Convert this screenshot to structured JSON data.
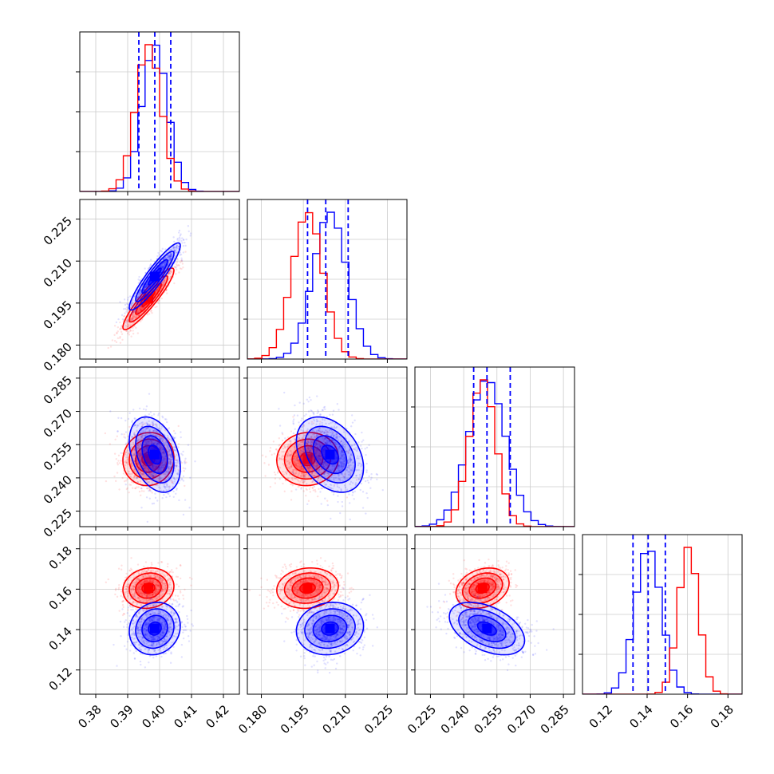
{
  "chart_data": {
    "type": "corner",
    "title": "",
    "parameters": [
      "",
      "",
      "",
      ""
    ],
    "grid": true,
    "colors": {
      "series_a": "#0000ff",
      "series_b": "#ff0000"
    },
    "series": [
      {
        "color": "#0000ff",
        "means": [
          0.3985,
          0.2045,
          0.2505,
          0.1405
        ],
        "sds": [
          0.004,
          0.006,
          0.0085,
          0.0065
        ]
      },
      {
        "color": "#ff0000",
        "means": [
          0.3965,
          0.1965,
          0.2485,
          0.1605
        ],
        "sds": [
          0.004,
          0.0055,
          0.006,
          0.005
        ]
      }
    ],
    "correlations": [
      {
        "i": 1,
        "j": 0,
        "a": 0.92,
        "b": 0.92
      },
      {
        "i": 2,
        "j": 0,
        "a": -0.35,
        "b": 0.05
      },
      {
        "i": 2,
        "j": 1,
        "a": -0.35,
        "b": 0.05
      },
      {
        "i": 3,
        "j": 0,
        "a": 0.1,
        "b": 0.1
      },
      {
        "i": 3,
        "j": 1,
        "a": 0.1,
        "b": 0.1
      },
      {
        "i": 3,
        "j": 2,
        "a": -0.45,
        "b": 0.25
      }
    ],
    "quantile_lines": [
      [
        0.3935,
        0.3985,
        0.4035
      ],
      [
        0.1965,
        0.203,
        0.211
      ],
      [
        0.2445,
        0.2505,
        0.261
      ],
      [
        0.133,
        0.1405,
        0.149
      ]
    ],
    "axis_ranges": [
      [
        0.375,
        0.425
      ],
      [
        0.175,
        0.232
      ],
      [
        0.218,
        0.29
      ],
      [
        0.108,
        0.187
      ]
    ],
    "x_ticks": [
      [
        "0.38",
        "0.39",
        "0.40",
        "0.41",
        "0.42"
      ],
      [
        "0.180",
        "0.195",
        "0.210",
        "0.225"
      ],
      [
        "0.225",
        "0.240",
        "0.255",
        "0.270",
        "0.285"
      ],
      [
        "0.12",
        "0.14",
        "0.16",
        "0.18"
      ]
    ],
    "y_ticks": [
      [],
      [
        "0.180",
        "0.195",
        "0.210",
        "0.225"
      ],
      [
        "0.225",
        "0.240",
        "0.255",
        "0.270",
        "0.285"
      ],
      [
        "0.12",
        "0.14",
        "0.16",
        "0.18"
      ]
    ]
  }
}
